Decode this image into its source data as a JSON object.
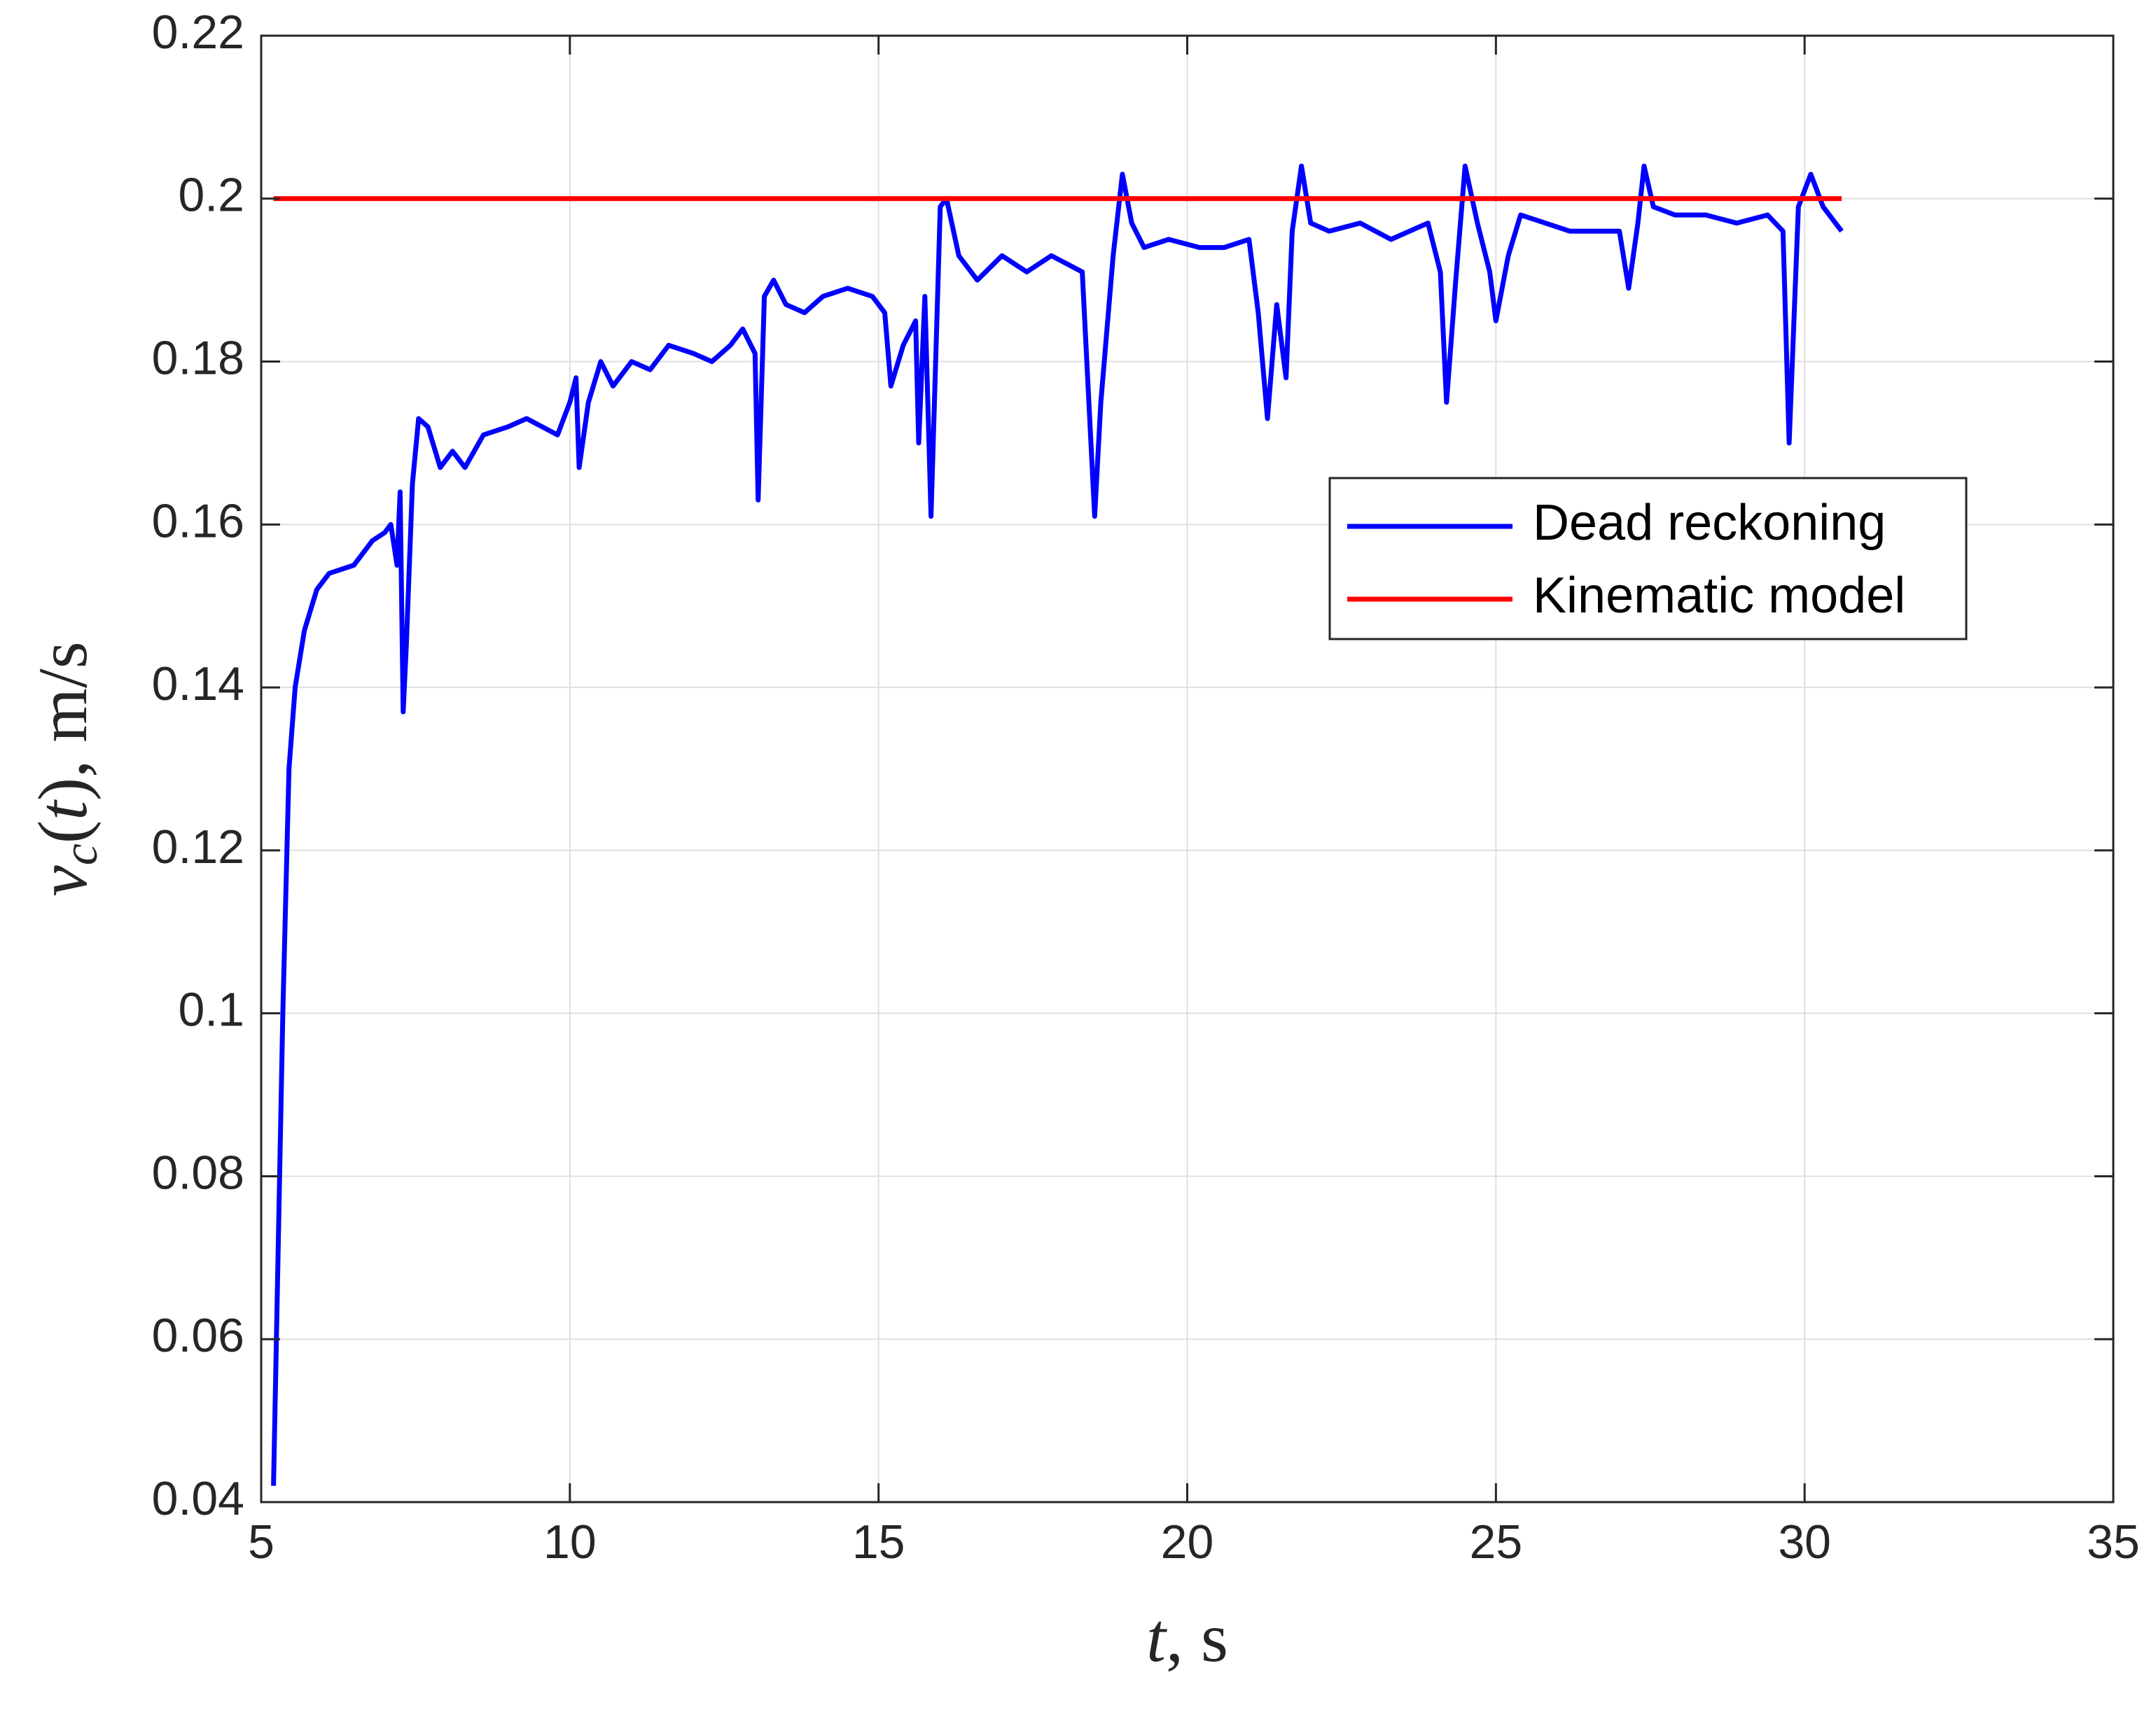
{
  "chart_data": {
    "type": "line",
    "xlabel": [
      "t",
      ", s"
    ],
    "ylabel": [
      "v",
      "c",
      "(",
      "t",
      "), m/s"
    ],
    "xlim": [
      5,
      35
    ],
    "xticks": [
      5,
      10,
      15,
      20,
      25,
      30,
      35
    ],
    "ylim": [
      0.04,
      0.22
    ],
    "yticks": [
      0.04,
      0.06,
      0.08,
      0.1,
      0.12,
      0.14,
      0.16,
      0.18,
      0.2,
      0.22
    ],
    "grid": true,
    "legend_position": "east",
    "series": [
      {
        "name": "Dead reckoning",
        "color": "#0000ff",
        "x": [
          5.2,
          5.35,
          5.45,
          5.55,
          5.7,
          5.9,
          6.1,
          6.5,
          6.8,
          7.0,
          7.1,
          7.2,
          7.25,
          7.3,
          7.35,
          7.45,
          7.55,
          7.7,
          7.9,
          8.1,
          8.3,
          8.6,
          9.0,
          9.3,
          9.8,
          10.0,
          10.1,
          10.15,
          10.3,
          10.5,
          10.7,
          11.0,
          11.3,
          11.6,
          12.0,
          12.3,
          12.6,
          12.8,
          13.0,
          13.05,
          13.15,
          13.3,
          13.5,
          13.8,
          14.1,
          14.5,
          14.9,
          15.1,
          15.2,
          15.4,
          15.6,
          15.65,
          15.75,
          15.85,
          16.0,
          16.1,
          16.3,
          16.6,
          17.0,
          17.4,
          17.8,
          18.3,
          18.5,
          18.6,
          18.8,
          18.95,
          19.1,
          19.3,
          19.7,
          20.2,
          20.6,
          21.0,
          21.15,
          21.3,
          21.45,
          21.6,
          21.7,
          21.85,
          22.0,
          22.3,
          22.8,
          23.3,
          23.9,
          24.1,
          24.2,
          24.35,
          24.5,
          24.7,
          24.9,
          25.0,
          25.2,
          25.4,
          25.8,
          26.2,
          26.7,
          27.0,
          27.15,
          27.3,
          27.4,
          27.55,
          27.9,
          28.4,
          28.9,
          29.4,
          29.65,
          29.75,
          29.9,
          30.1,
          30.3,
          30.5,
          30.6
        ],
        "values": [
          0.042,
          0.1,
          0.13,
          0.14,
          0.147,
          0.152,
          0.154,
          0.155,
          0.158,
          0.159,
          0.16,
          0.155,
          0.164,
          0.137,
          0.145,
          0.165,
          0.173,
          0.172,
          0.167,
          0.169,
          0.167,
          0.171,
          0.172,
          0.173,
          0.171,
          0.175,
          0.178,
          0.167,
          0.175,
          0.18,
          0.177,
          0.18,
          0.179,
          0.182,
          0.181,
          0.18,
          0.182,
          0.184,
          0.181,
          0.163,
          0.188,
          0.19,
          0.187,
          0.186,
          0.188,
          0.189,
          0.188,
          0.186,
          0.177,
          0.182,
          0.185,
          0.17,
          0.188,
          0.161,
          0.199,
          0.2,
          0.193,
          0.19,
          0.193,
          0.191,
          0.193,
          0.191,
          0.161,
          0.175,
          0.193,
          0.203,
          0.197,
          0.194,
          0.195,
          0.194,
          0.194,
          0.195,
          0.186,
          0.173,
          0.187,
          0.178,
          0.196,
          0.204,
          0.197,
          0.196,
          0.197,
          0.195,
          0.197,
          0.191,
          0.175,
          0.19,
          0.204,
          0.197,
          0.191,
          0.185,
          0.193,
          0.198,
          0.197,
          0.196,
          0.196,
          0.196,
          0.189,
          0.197,
          0.204,
          0.199,
          0.198,
          0.198,
          0.197,
          0.198,
          0.196,
          0.17,
          0.199,
          0.203,
          0.199,
          0.197,
          0.196
        ]
      },
      {
        "name": "Kinematic model",
        "color": "#ff0000",
        "x": [
          5.2,
          30.6
        ],
        "values": [
          0.2,
          0.2
        ]
      }
    ]
  }
}
